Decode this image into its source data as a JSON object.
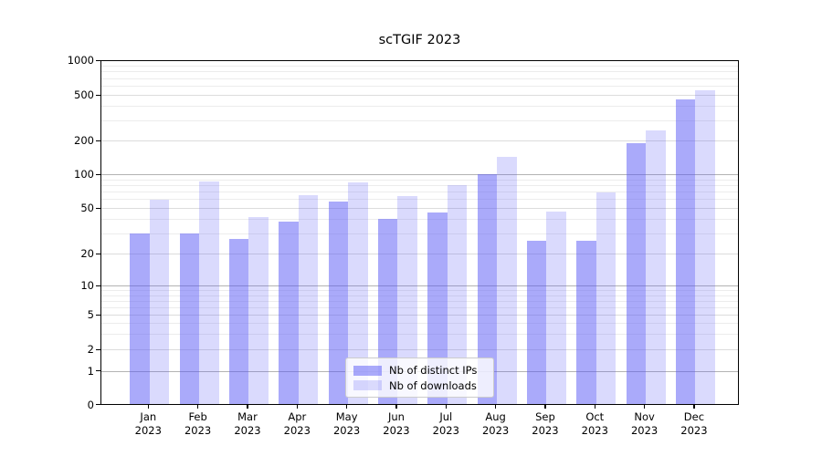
{
  "title": "scTGIF 2023",
  "legend": {
    "items": [
      {
        "label": "Nb of distinct IPs",
        "color": "rgba(85,85,245,0.50)"
      },
      {
        "label": "Nb of downloads",
        "color": "rgba(85,85,245,0.22)"
      }
    ]
  },
  "colors": {
    "bar_dark": "rgba(85,85,245,0.50)",
    "bar_light": "rgba(85,85,245,0.22)",
    "grid_major": "#b3b3b3",
    "grid_mid": "#dcdcdc",
    "grid_minor": "#ececec",
    "spine": "#000000",
    "legend_border": "#cccccc"
  },
  "chart_data": {
    "type": "bar",
    "title": "scTGIF 2023",
    "categories": [
      "Jan 2023",
      "Feb 2023",
      "Mar 2023",
      "Apr 2023",
      "May 2023",
      "Jun 2023",
      "Jul 2023",
      "Aug 2023",
      "Sep 2023",
      "Oct 2023",
      "Nov 2023",
      "Dec 2023"
    ],
    "month_labels": [
      "Jan",
      "Feb",
      "Mar",
      "Apr",
      "May",
      "Jun",
      "Jul",
      "Aug",
      "Sep",
      "Oct",
      "Nov",
      "Dec"
    ],
    "year_label": "2023",
    "series": [
      {
        "name": "Nb of distinct IPs",
        "values": [
          30,
          30,
          27,
          38,
          57,
          40,
          46,
          100,
          26,
          26,
          190,
          455
        ]
      },
      {
        "name": "Nb of downloads",
        "values": [
          59,
          86,
          42,
          65,
          84,
          64,
          80,
          142,
          47,
          69,
          245,
          550
        ]
      }
    ],
    "xlabel": "",
    "ylabel": "",
    "yscale": "symlog",
    "yticks": [
      0,
      1,
      2,
      5,
      10,
      20,
      50,
      100,
      200,
      500,
      1000
    ],
    "ytick_labels": [
      "0",
      "1",
      "2",
      "5",
      "10",
      "20",
      "50",
      "100",
      "200",
      "500",
      "1000"
    ],
    "minor_gridlines": [
      3,
      4,
      6,
      7,
      8,
      9,
      30,
      40,
      60,
      70,
      80,
      90,
      300,
      400,
      600,
      700,
      800,
      900
    ],
    "ylim": [
      0,
      1000
    ],
    "grid": true,
    "legend_position": "lower center"
  }
}
